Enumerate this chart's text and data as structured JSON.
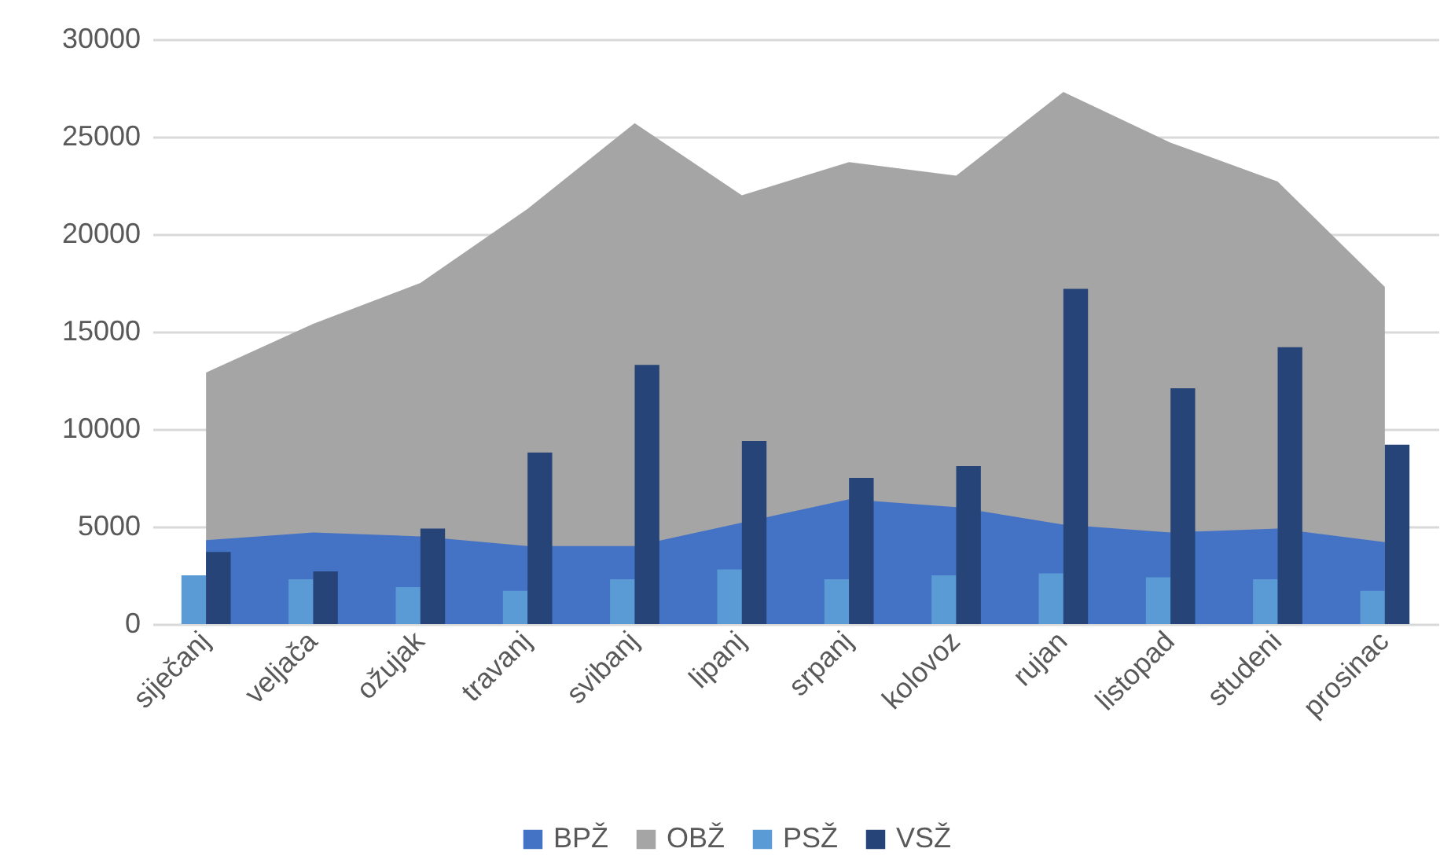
{
  "chart_data": {
    "type": "bar",
    "categories": [
      "siječanj",
      "veljača",
      "ožujak",
      "travanj",
      "svibanj",
      "lipanj",
      "srpanj",
      "kolovoz",
      "rujan",
      "listopad",
      "studeni",
      "prosinac"
    ],
    "series": [
      {
        "name": "BPŽ",
        "type": "area",
        "color": "#4472c4",
        "values": [
          4300,
          4700,
          4500,
          4000,
          4000,
          5200,
          6400,
          6000,
          5100,
          4700,
          4900,
          4200
        ]
      },
      {
        "name": "OBŽ",
        "type": "area",
        "color": "#a5a5a5",
        "values": [
          12900,
          15400,
          17500,
          21300,
          25700,
          22000,
          23700,
          23000,
          27300,
          24700,
          22700,
          17300
        ]
      },
      {
        "name": "PSŽ",
        "color": "#5b9bd5",
        "values": [
          2500,
          2300,
          1900,
          1700,
          2300,
          2800,
          2300,
          2500,
          2600,
          2400,
          2300,
          1700
        ]
      },
      {
        "name": "VSŽ",
        "color": "#264478",
        "values": [
          3700,
          2700,
          4900,
          8800,
          13300,
          9400,
          7500,
          8100,
          17200,
          12100,
          14200,
          9200
        ]
      }
    ],
    "ylim": [
      0,
      30000
    ],
    "yticks": [
      0,
      5000,
      10000,
      15000,
      20000,
      25000,
      30000
    ],
    "grid": "y",
    "legend": "bottom"
  }
}
